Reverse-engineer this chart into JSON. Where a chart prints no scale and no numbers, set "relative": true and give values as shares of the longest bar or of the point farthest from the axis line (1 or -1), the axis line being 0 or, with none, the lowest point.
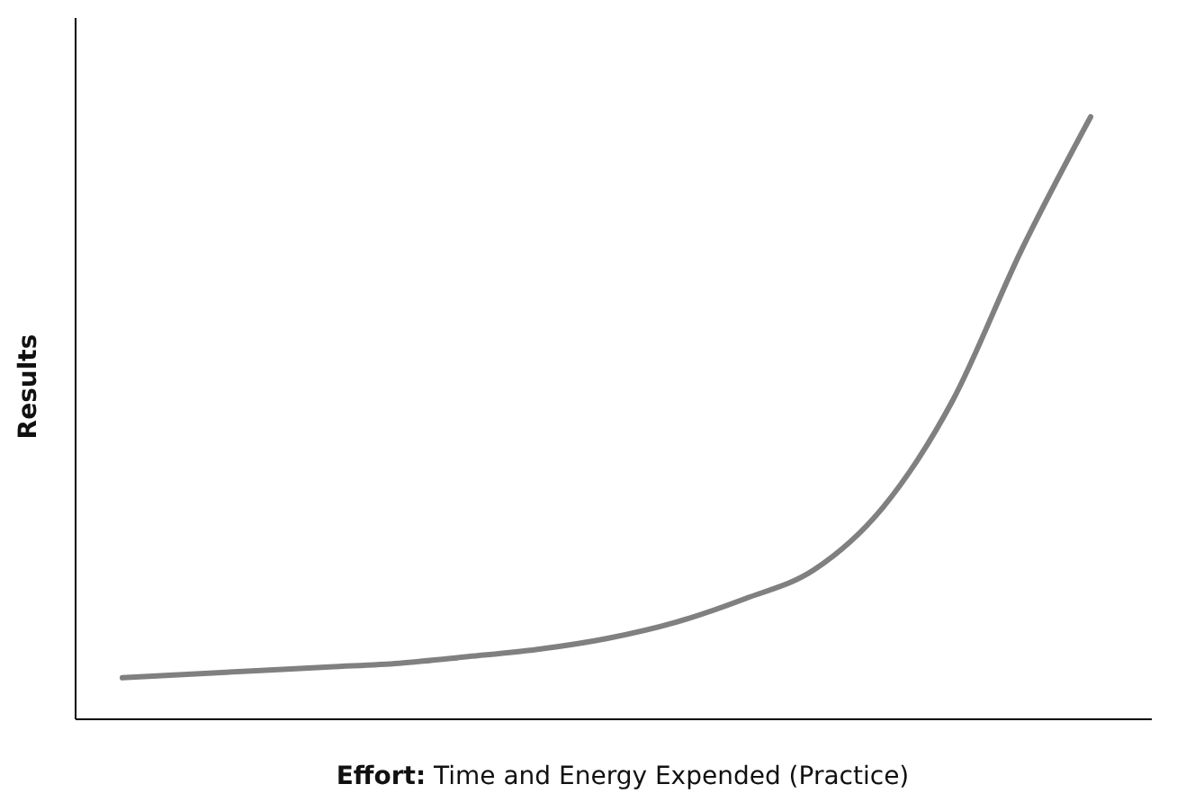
{
  "chart_data": {
    "type": "line",
    "relative": true,
    "xlabel": "Effort: Time and Energy Expended (Practice)",
    "ylabel": "Results",
    "categories": [
      null,
      null,
      null,
      null,
      null,
      null,
      null,
      null,
      null,
      null,
      null,
      null,
      null,
      null,
      null
    ],
    "series": [
      {
        "color": "#808080",
        "values": [
          0.069,
          0.075,
          0.081,
          0.087,
          0.093,
          0.104,
          0.116,
          0.134,
          0.161,
          0.2,
          0.248,
          0.352,
          0.528,
          0.779,
          1
        ]
      }
    ],
    "line_style": "solid"
  }
}
